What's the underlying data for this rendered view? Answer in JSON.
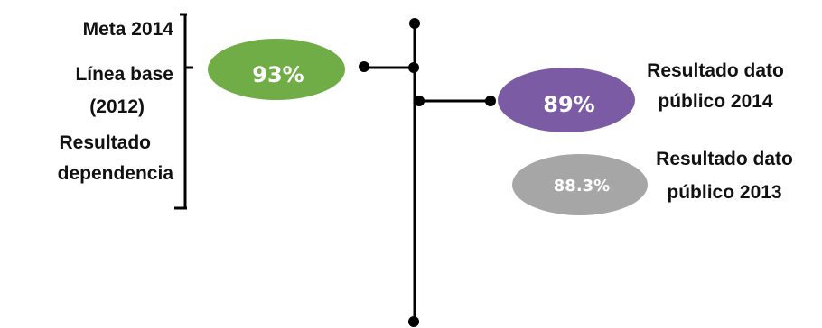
{
  "left_labels": {
    "meta": "Meta 2014",
    "linea_base_1": "Línea base",
    "linea_base_2": "(2012)",
    "resultado_dep_1": "Resultado",
    "resultado_dep_2": "dependencia"
  },
  "ellipses": {
    "meta": {
      "value": "93%",
      "color": "#70ad47"
    },
    "publico_2014": {
      "value": "89%",
      "color": "#7b5ba3"
    },
    "publico_2013": {
      "value": "88.3%",
      "color": "#a6a6a6"
    }
  },
  "right_labels": {
    "publico_2014_line1": "Resultado dato",
    "publico_2014_line2": "público 2014",
    "publico_2013_line1": "Resultado dato",
    "publico_2013_line2": "público 2013"
  },
  "line_color": "#000000"
}
